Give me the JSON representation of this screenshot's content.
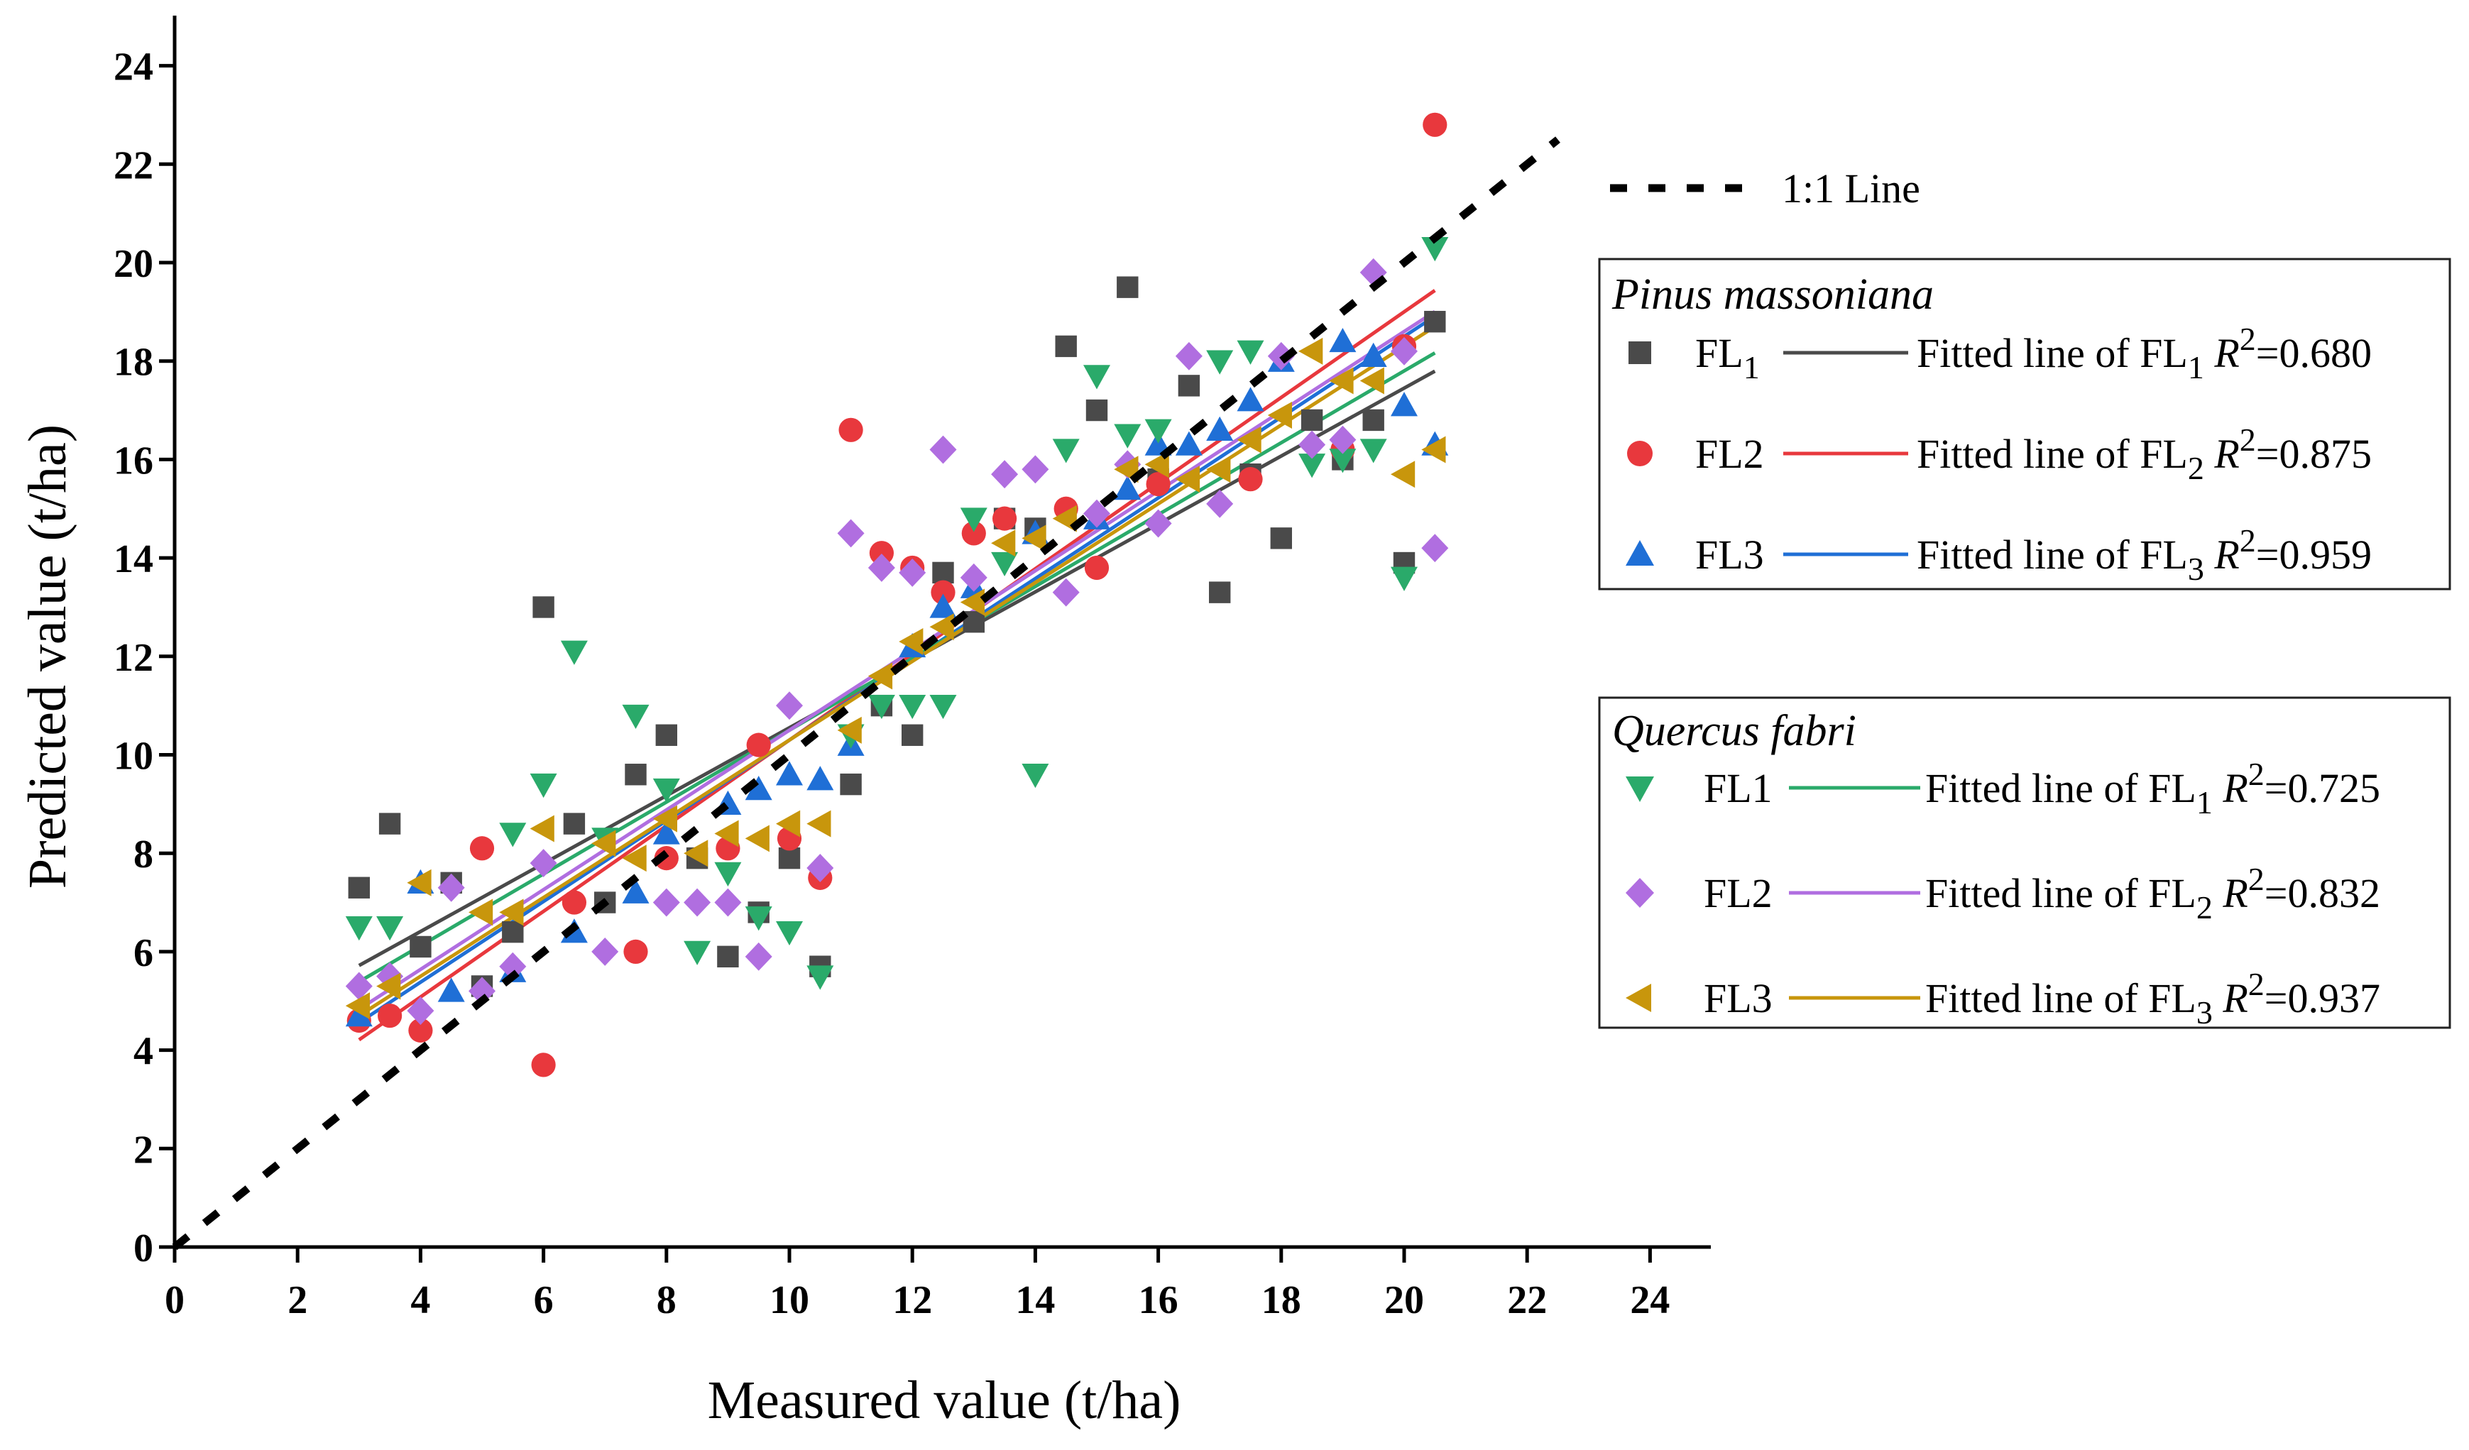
{
  "chart_data": {
    "type": "scatter",
    "title": "",
    "xlabel": "Measured value (t/ha)",
    "ylabel": "Predicted value (t/ha)",
    "xlim": [
      0,
      25
    ],
    "ylim": [
      0,
      25
    ],
    "xticks": [
      0,
      2,
      4,
      6,
      8,
      10,
      12,
      14,
      16,
      18,
      20,
      22,
      24
    ],
    "yticks": [
      0,
      2,
      4,
      6,
      8,
      10,
      12,
      14,
      16,
      18,
      20,
      22,
      24
    ],
    "grid": false,
    "reference_line": {
      "label": "1:1 Line",
      "x": [
        0,
        22.5
      ],
      "y": [
        0,
        22.5
      ],
      "color": "#000000"
    },
    "groups": [
      {
        "name": "Pinus massoniana",
        "series": [
          {
            "name": "FL1",
            "name_main": "FL",
            "name_sub": "1",
            "marker": "square",
            "color": "#4a4a4a",
            "fit": {
              "label_main": "Fitted line of FL",
              "label_sub": "1",
              "r2_label": "R",
              "r2_sup": "2",
              "r2_value": "=0.680",
              "slope": 0.69,
              "intercept": 3.65,
              "x_range": [
                3,
                20.5
              ],
              "color": "#4a4a4a"
            },
            "points": [
              [
                3,
                7.3
              ],
              [
                3.5,
                8.6
              ],
              [
                4,
                6.1
              ],
              [
                4.5,
                7.4
              ],
              [
                5,
                5.3
              ],
              [
                5.5,
                6.4
              ],
              [
                6,
                13.0
              ],
              [
                6.5,
                8.6
              ],
              [
                7,
                7.0
              ],
              [
                7.5,
                9.6
              ],
              [
                8,
                10.4
              ],
              [
                8.5,
                7.9
              ],
              [
                9,
                5.9
              ],
              [
                9.5,
                6.8
              ],
              [
                10,
                7.9
              ],
              [
                10.5,
                5.7
              ],
              [
                11,
                9.4
              ],
              [
                11.5,
                11.0
              ],
              [
                12,
                10.4
              ],
              [
                12.5,
                13.7
              ],
              [
                13,
                12.7
              ],
              [
                13.5,
                14.8
              ],
              [
                14,
                14.6
              ],
              [
                14.5,
                18.3
              ],
              [
                15,
                17.0
              ],
              [
                15.5,
                19.5
              ],
              [
                16,
                15.6
              ],
              [
                16.5,
                17.5
              ],
              [
                17,
                13.3
              ],
              [
                17.5,
                15.7
              ],
              [
                18,
                14.4
              ],
              [
                18.5,
                16.8
              ],
              [
                19,
                16.0
              ],
              [
                19.5,
                16.8
              ],
              [
                20,
                13.9
              ],
              [
                20.5,
                18.8
              ]
            ]
          },
          {
            "name": "FL2",
            "name_main": "FL2",
            "name_sub": "",
            "marker": "circle",
            "color": "#e8383d",
            "fit": {
              "label_main": "Fitted line of FL",
              "label_sub": "2",
              "r2_label": "R",
              "r2_sup": "2",
              "r2_value": "=0.875",
              "slope": 0.87,
              "intercept": 1.6,
              "x_range": [
                3,
                20.5
              ],
              "color": "#e8383d"
            },
            "points": [
              [
                3,
                4.6
              ],
              [
                3.5,
                4.7
              ],
              [
                4,
                4.4
              ],
              [
                5,
                8.1
              ],
              [
                6,
                3.7
              ],
              [
                6.5,
                7.0
              ],
              [
                7.5,
                6.0
              ],
              [
                8,
                7.9
              ],
              [
                9,
                8.1
              ],
              [
                9.5,
                10.2
              ],
              [
                10,
                8.3
              ],
              [
                10.5,
                7.5
              ],
              [
                11,
                16.6
              ],
              [
                11.5,
                14.1
              ],
              [
                12,
                13.8
              ],
              [
                12.5,
                13.3
              ],
              [
                13,
                14.5
              ],
              [
                13.5,
                14.8
              ],
              [
                14.5,
                15.0
              ],
              [
                15,
                13.8
              ],
              [
                16,
                15.5
              ],
              [
                17.5,
                15.6
              ],
              [
                19,
                16.2
              ],
              [
                20,
                18.3
              ],
              [
                20.5,
                22.8
              ]
            ]
          },
          {
            "name": "FL3",
            "name_main": "FL3",
            "name_sub": "",
            "marker": "triangle-up",
            "color": "#1f6fd6",
            "fit": {
              "label_main": "Fitted line of FL",
              "label_sub": "3",
              "r2_label": "R",
              "r2_sup": "2",
              "r2_value": "=0.959",
              "slope": 0.82,
              "intercept": 2.1,
              "x_range": [
                3,
                20.5
              ],
              "color": "#1f6fd6"
            },
            "points": [
              [
                3,
                4.7
              ],
              [
                4,
                7.4
              ],
              [
                4.5,
                5.2
              ],
              [
                5.5,
                5.6
              ],
              [
                6.5,
                6.4
              ],
              [
                7.5,
                7.2
              ],
              [
                8,
                8.4
              ],
              [
                9,
                9.0
              ],
              [
                9.5,
                9.3
              ],
              [
                10,
                9.6
              ],
              [
                10.5,
                9.5
              ],
              [
                11,
                10.2
              ],
              [
                12,
                12.2
              ],
              [
                12.5,
                13.0
              ],
              [
                13,
                13.4
              ],
              [
                14,
                14.5
              ],
              [
                15,
                14.8
              ],
              [
                15.5,
                15.4
              ],
              [
                16,
                16.3
              ],
              [
                16.5,
                16.3
              ],
              [
                17,
                16.6
              ],
              [
                17.5,
                17.2
              ],
              [
                18,
                18.0
              ],
              [
                19,
                18.4
              ],
              [
                19.5,
                18.1
              ],
              [
                20,
                17.1
              ],
              [
                20.5,
                16.3
              ]
            ]
          }
        ]
      },
      {
        "name": "Quercus fabri",
        "series": [
          {
            "name": "FL1",
            "name_main": "FL1",
            "name_sub": "",
            "marker": "triangle-down",
            "color": "#2aaa6a",
            "fit": {
              "label_main": "Fitted line of FL",
              "label_sub": "1",
              "r2_label": "R",
              "r2_sup": "2",
              "r2_value": "=0.725",
              "slope": 0.73,
              "intercept": 3.2,
              "x_range": [
                3,
                20.5
              ],
              "color": "#2aaa6a"
            },
            "points": [
              [
                3,
                6.5
              ],
              [
                3.5,
                6.5
              ],
              [
                5.5,
                8.4
              ],
              [
                6,
                9.4
              ],
              [
                6.5,
                12.1
              ],
              [
                7,
                8.3
              ],
              [
                7.5,
                10.8
              ],
              [
                8,
                9.3
              ],
              [
                8.5,
                6.0
              ],
              [
                9,
                7.6
              ],
              [
                9.5,
                6.7
              ],
              [
                10,
                6.4
              ],
              [
                10.5,
                5.5
              ],
              [
                11,
                10.4
              ],
              [
                11.5,
                11.0
              ],
              [
                12,
                11.0
              ],
              [
                12.5,
                11.0
              ],
              [
                13,
                14.8
              ],
              [
                13.5,
                13.9
              ],
              [
                14,
                9.6
              ],
              [
                14.5,
                16.2
              ],
              [
                15,
                17.7
              ],
              [
                15.5,
                16.5
              ],
              [
                16,
                16.6
              ],
              [
                17,
                18.0
              ],
              [
                17.5,
                18.2
              ],
              [
                18.5,
                15.9
              ],
              [
                19,
                16.0
              ],
              [
                19.5,
                16.2
              ],
              [
                20,
                13.6
              ],
              [
                20.5,
                20.3
              ]
            ]
          },
          {
            "name": "FL2",
            "name_main": "FL2",
            "name_sub": "",
            "marker": "diamond",
            "color": "#b06ee0",
            "fit": {
              "label_main": "Fitted line of FL",
              "label_sub": "2",
              "r2_label": "R",
              "r2_sup": "2",
              "r2_value": "=0.832",
              "slope": 0.81,
              "intercept": 2.4,
              "x_range": [
                3,
                20.5
              ],
              "color": "#b06ee0"
            },
            "points": [
              [
                3,
                5.3
              ],
              [
                3.5,
                5.5
              ],
              [
                4,
                4.8
              ],
              [
                4.5,
                7.3
              ],
              [
                5,
                5.2
              ],
              [
                5.5,
                5.7
              ],
              [
                6,
                7.8
              ],
              [
                7,
                6.0
              ],
              [
                8,
                7.0
              ],
              [
                8.5,
                7.0
              ],
              [
                9,
                7.0
              ],
              [
                9.5,
                5.9
              ],
              [
                10,
                11.0
              ],
              [
                10.5,
                7.7
              ],
              [
                11,
                14.5
              ],
              [
                11.5,
                13.8
              ],
              [
                12,
                13.7
              ],
              [
                12.5,
                16.2
              ],
              [
                13,
                13.6
              ],
              [
                13.5,
                15.7
              ],
              [
                14,
                15.8
              ],
              [
                14.5,
                13.3
              ],
              [
                15,
                14.9
              ],
              [
                15.5,
                15.9
              ],
              [
                16,
                14.7
              ],
              [
                16.5,
                18.1
              ],
              [
                17,
                15.1
              ],
              [
                18,
                18.1
              ],
              [
                18.5,
                16.3
              ],
              [
                19,
                16.4
              ],
              [
                19.5,
                19.8
              ],
              [
                20,
                18.2
              ],
              [
                20.5,
                14.2
              ]
            ]
          },
          {
            "name": "FL3",
            "name_main": "FL3",
            "name_sub": "",
            "marker": "triangle-left",
            "color": "#c8960c",
            "fit": {
              "label_main": "Fitted line of FL",
              "label_sub": "3",
              "r2_label": "R",
              "r2_sup": "2",
              "r2_value": "=0.937",
              "slope": 0.8,
              "intercept": 2.3,
              "x_range": [
                3,
                20.5
              ],
              "color": "#c8960c"
            },
            "points": [
              [
                3,
                4.9
              ],
              [
                3.5,
                5.3
              ],
              [
                4,
                7.4
              ],
              [
                5,
                6.8
              ],
              [
                5.5,
                6.8
              ],
              [
                6,
                8.5
              ],
              [
                7,
                8.2
              ],
              [
                7.5,
                7.9
              ],
              [
                8,
                8.7
              ],
              [
                8.5,
                8.0
              ],
              [
                9,
                8.4
              ],
              [
                9.5,
                8.3
              ],
              [
                10,
                8.6
              ],
              [
                10.5,
                8.6
              ],
              [
                11,
                10.5
              ],
              [
                11.5,
                11.6
              ],
              [
                12,
                12.3
              ],
              [
                12.5,
                12.6
              ],
              [
                13,
                13.1
              ],
              [
                13.5,
                14.3
              ],
              [
                14,
                14.4
              ],
              [
                14.5,
                14.8
              ],
              [
                15.5,
                15.8
              ],
              [
                16,
                15.9
              ],
              [
                16.5,
                15.6
              ],
              [
                17,
                15.8
              ],
              [
                17.5,
                16.4
              ],
              [
                18,
                16.9
              ],
              [
                18.5,
                18.2
              ],
              [
                19,
                17.6
              ],
              [
                19.5,
                17.6
              ],
              [
                20,
                15.7
              ],
              [
                20.5,
                16.2
              ]
            ]
          }
        ]
      }
    ]
  }
}
